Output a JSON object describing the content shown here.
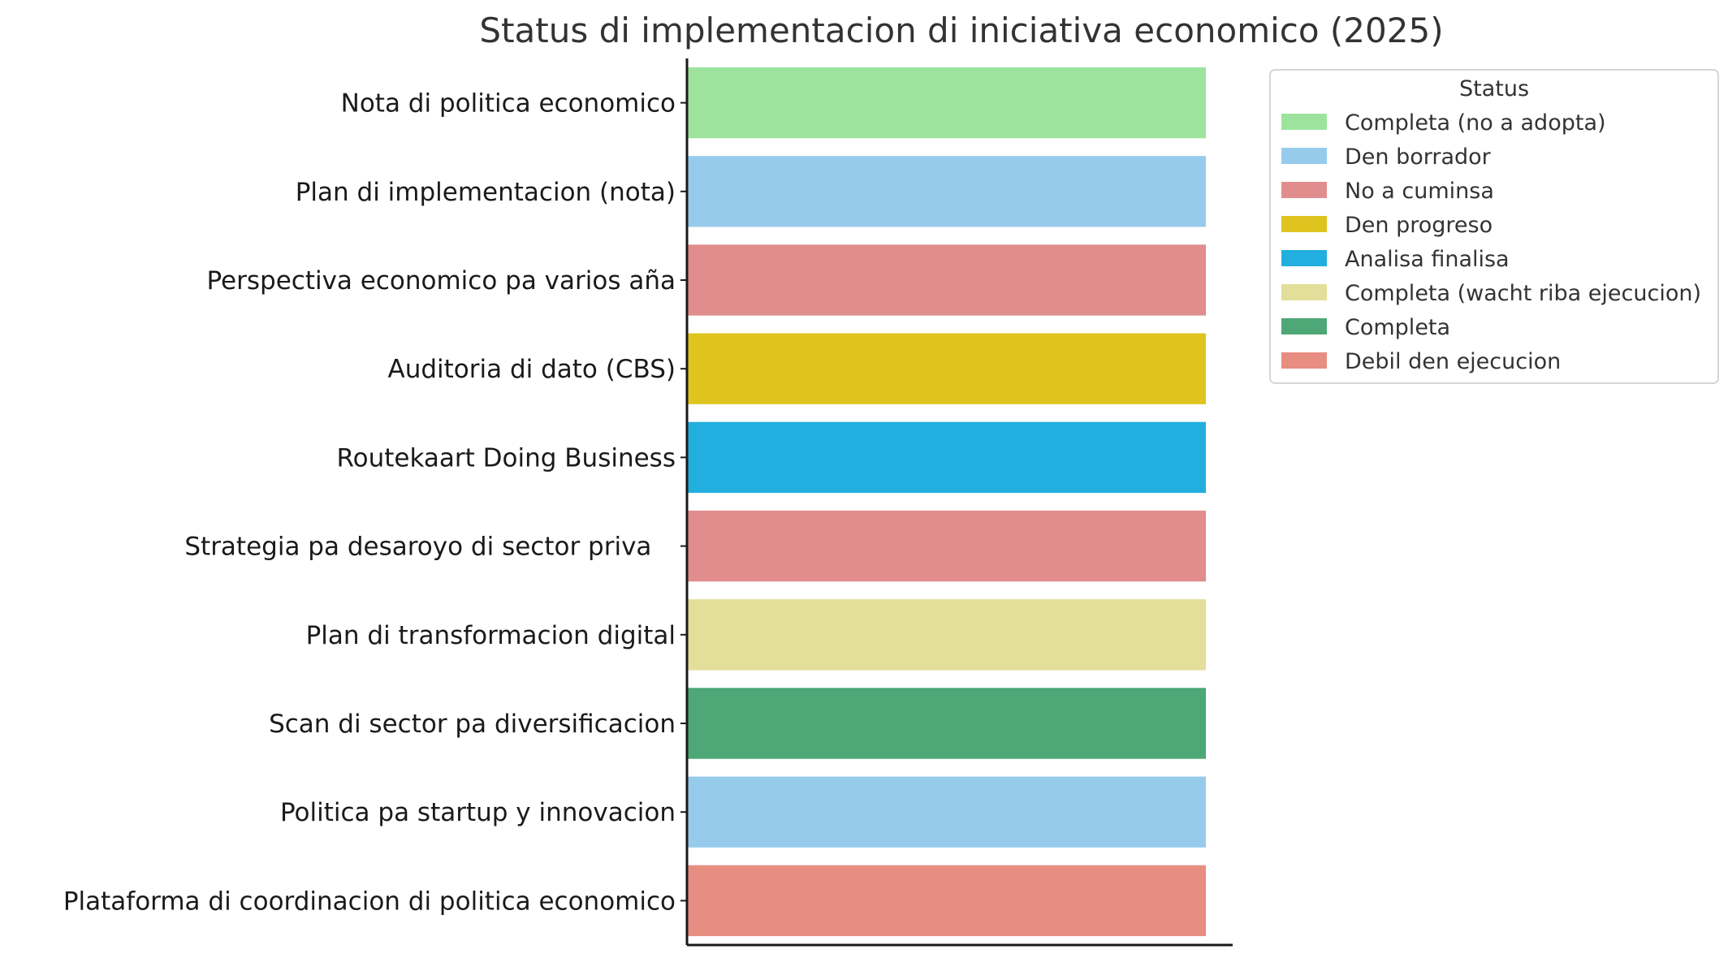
{
  "chart_data": {
    "type": "bar",
    "orientation": "horizontal",
    "title": "Status di implementacion di iniciativa economico (2025)",
    "xlabel": "",
    "ylabel": "",
    "categories": [
      "Nota di politica economico",
      "Plan di implementacion (nota)",
      "Perspectiva economico pa varios aña",
      "Auditoria di dato (CBS)",
      "Routekaart Doing Business",
      "Strategia pa desaroyo di sector priva   ",
      "Plan di transformacion digital",
      "Scan di sector pa diversificacion",
      "Politica pa startup y innovacion",
      "Plataforma di coordinacion di politica economico"
    ],
    "values": [
      1,
      1,
      1,
      1,
      1,
      1,
      1,
      1,
      1,
      1
    ],
    "status": [
      "Completa (no a adopta)",
      "Den borrador",
      "No a cuminsa",
      "Den progreso",
      "Analisa finalisa",
      "No a cuminsa",
      "Completa (wacht riba ejecucion)",
      "Completa",
      "Den borrador",
      "Debil den ejecucion"
    ],
    "colors": [
      "#9de39d",
      "#97cbec",
      "#e18d8d",
      "#dfc41f",
      "#22aede",
      "#e18d8d",
      "#e3de99",
      "#4da776",
      "#97cbec",
      "#e88d81"
    ],
    "xlim": [
      0,
      1.05
    ],
    "grid": false,
    "legend": {
      "title": "Status",
      "placement": "outside upper right",
      "entries": [
        {
          "label": "Completa (no a adopta)",
          "color": "#9de39d"
        },
        {
          "label": "Den borrador",
          "color": "#97cbec"
        },
        {
          "label": "No a cuminsa",
          "color": "#e18d8d"
        },
        {
          "label": "Den progreso",
          "color": "#dfc41f"
        },
        {
          "label": "Analisa finalisa",
          "color": "#22aede"
        },
        {
          "label": "Completa (wacht riba ejecucion)",
          "color": "#e3de99"
        },
        {
          "label": "Completa",
          "color": "#4da776"
        },
        {
          "label": "Debil den ejecucion",
          "color": "#e88d81"
        }
      ]
    }
  }
}
